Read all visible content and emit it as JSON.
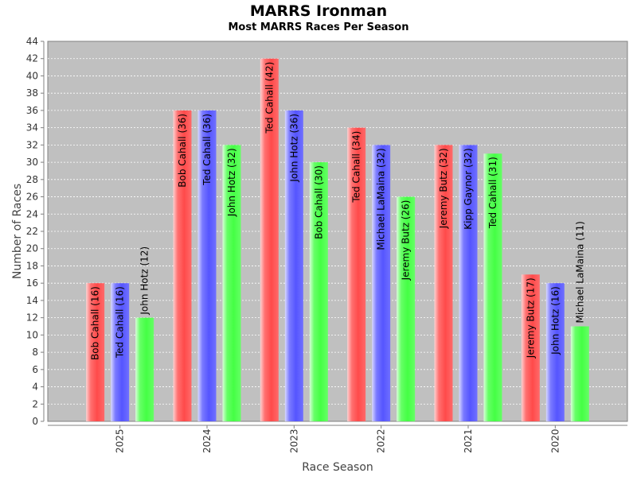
{
  "chart_data": {
    "type": "bar",
    "title": "MARRS Ironman",
    "subtitle": "Most MARRS Races Per Season",
    "xlabel": "Race Season",
    "ylabel": "Number of Races",
    "ylim": [
      0,
      44
    ],
    "ytick_step": 2,
    "grid": true,
    "legend": "none",
    "categories": [
      "2025",
      "2024",
      "2023",
      "2022",
      "2021",
      "2020"
    ],
    "colors": [
      "#ff5a5a",
      "#6666ff",
      "#55ff55"
    ],
    "groups": [
      {
        "season": "2025",
        "bars": [
          {
            "label": "Bob Cahall (16)",
            "value": 16
          },
          {
            "label": "Ted Cahall (16)",
            "value": 16
          },
          {
            "label": "John Hotz (12)",
            "value": 12
          }
        ]
      },
      {
        "season": "2024",
        "bars": [
          {
            "label": "Bob Cahall (36)",
            "value": 36
          },
          {
            "label": "Ted Cahall (36)",
            "value": 36
          },
          {
            "label": "John Hotz (32)",
            "value": 32
          }
        ]
      },
      {
        "season": "2023",
        "bars": [
          {
            "label": "Ted Cahall (42)",
            "value": 42
          },
          {
            "label": "John Hotz (36)",
            "value": 36
          },
          {
            "label": "Bob Cahall (30)",
            "value": 30
          }
        ]
      },
      {
        "season": "2022",
        "bars": [
          {
            "label": "Ted Cahall (34)",
            "value": 34
          },
          {
            "label": "Michael LaMaina (32)",
            "value": 32
          },
          {
            "label": "Jeremy Butz (26)",
            "value": 26
          }
        ]
      },
      {
        "season": "2021",
        "bars": [
          {
            "label": "Jeremy Butz (32)",
            "value": 32
          },
          {
            "label": "Kipp Gaynor (32)",
            "value": 32
          },
          {
            "label": "Ted Cahall (31)",
            "value": 31
          }
        ]
      },
      {
        "season": "2020",
        "bars": [
          {
            "label": "Jeremy Butz (17)",
            "value": 17
          },
          {
            "label": "John Hotz (16)",
            "value": 16
          },
          {
            "label": "Michael LaMaina (11)",
            "value": 11
          }
        ]
      }
    ]
  }
}
